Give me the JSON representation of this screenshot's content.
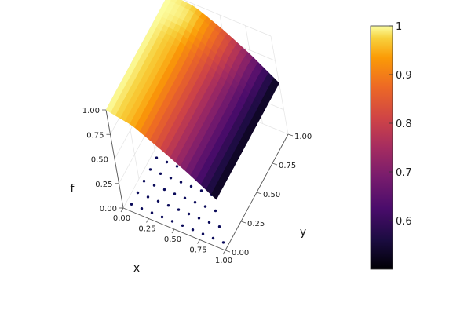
{
  "chart_data": {
    "type": "surface3d",
    "title": "",
    "xlabel": "x",
    "ylabel": "y",
    "zlabel": "f",
    "xlim": [
      0,
      1
    ],
    "ylim": [
      0,
      1
    ],
    "zlim": [
      0,
      1
    ],
    "x_ticks": [
      "0.00",
      "0.25",
      "0.50",
      "0.75",
      "1.00"
    ],
    "y_ticks": [
      "0.00",
      "0.25",
      "0.50",
      "0.75",
      "1.00"
    ],
    "z_ticks": [
      "0.00",
      "0.25",
      "0.50",
      "0.75",
      "1.00"
    ],
    "grid": true,
    "colormap": "inferno",
    "colorbar": {
      "range": [
        0.5,
        1.0
      ],
      "ticks": [
        "0.6",
        "0.7",
        "0.8",
        "0.9",
        "1"
      ],
      "tick_values": [
        0.6,
        0.7,
        0.8,
        0.9,
        1.0
      ]
    },
    "surface": {
      "description": "f decreases from 1 at x=0 to about 0.5 at x=1",
      "f_at_x": [
        [
          0,
          1.0
        ],
        [
          0.25,
          0.95
        ],
        [
          0.5,
          0.82
        ],
        [
          0.75,
          0.68
        ],
        [
          1.0,
          0.52
        ]
      ]
    },
    "scatter_points": {
      "color": "#0b0b5a",
      "z": 0,
      "x_values": [
        0.05,
        0.15,
        0.25,
        0.35,
        0.45,
        0.55,
        0.65,
        0.75,
        0.85,
        0.95
      ],
      "y_values": [
        0.05,
        0.15,
        0.25,
        0.35,
        0.45,
        0.55,
        0.65,
        0.75,
        0.85,
        0.95
      ],
      "rule": "grid points with x + y <= 1"
    }
  }
}
